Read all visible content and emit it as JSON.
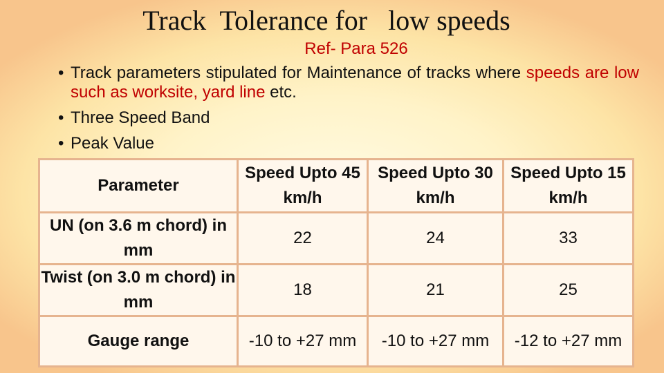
{
  "title": "Track  Tolerance for   low speeds",
  "reference": "Ref- Para 526",
  "bullets": [
    {
      "text_black": "Track parameters stipulated for Maintenance of tracks where ",
      "text_red": "speeds are low such as worksite, yard line",
      "text_tail": " etc."
    },
    {
      "text": "Three Speed Band"
    },
    {
      "text": "Peak Value"
    }
  ],
  "table": {
    "headers": [
      "Parameter",
      "Speed Upto 45 km/h",
      "Speed Upto 30 km/h",
      "Speed Upto 15 km/h"
    ],
    "rows": [
      {
        "parameter": "UN (on 3.6 m chord) in mm",
        "values": [
          "22",
          "24",
          "33"
        ]
      },
      {
        "parameter": "Twist (on 3.0 m chord) in mm",
        "values": [
          "18",
          "21",
          "25"
        ]
      },
      {
        "parameter": "Gauge range",
        "values": [
          "-10 to +27 mm",
          "-10 to +27 mm",
          "-12 to +27 mm"
        ]
      }
    ]
  },
  "colors": {
    "accent_red": "#c00000",
    "border": "#e6b48f",
    "cell_bg": "#fff7ec"
  }
}
